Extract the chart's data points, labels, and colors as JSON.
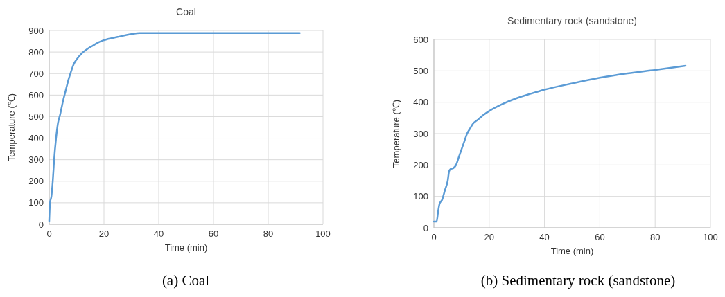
{
  "chart_data": [
    {
      "type": "line",
      "title": "Coal",
      "xlabel": "Time (min)",
      "ylabel": "Temperature (℃)",
      "annotations": [
        "(a) Coal"
      ],
      "xlim": [
        0,
        100
      ],
      "xticks": [
        0,
        20,
        40,
        60,
        80,
        100
      ],
      "ylim": [
        0,
        900
      ],
      "yticks": [
        0,
        100,
        200,
        300,
        400,
        500,
        600,
        700,
        800,
        900
      ],
      "grid": true,
      "series": [
        {
          "color": "#5b9bd5",
          "x": [
            0,
            0.3,
            0.8,
            1.3,
            1.8,
            2.5,
            3.2,
            4,
            5,
            6,
            7,
            8,
            9,
            10,
            12,
            14,
            16,
            18,
            20,
            25,
            30,
            33,
            40,
            60,
            80,
            91.5
          ],
          "values": [
            15,
            100,
            130,
            200,
            300,
            400,
            470,
            510,
            570,
            620,
            670,
            710,
            745,
            765,
            795,
            815,
            830,
            845,
            855,
            870,
            883,
            888,
            888,
            888,
            888,
            888
          ]
        }
      ]
    },
    {
      "type": "line",
      "title": "Sedimentary rock (sandstone)",
      "xlabel": "Time (min)",
      "ylabel": "Temperature (℃)",
      "annotations": [
        "(b) Sedimentary rock (sandstone)"
      ],
      "xlim": [
        0,
        100
      ],
      "xticks": [
        0,
        20,
        40,
        60,
        80,
        100
      ],
      "ylim": [
        0,
        600
      ],
      "yticks": [
        0,
        100,
        200,
        300,
        400,
        500,
        600
      ],
      "grid": true,
      "series": [
        {
          "color": "#5b9bd5",
          "x": [
            0,
            1,
            1.5,
            2,
            3,
            4,
            5,
            5.5,
            6,
            7,
            8,
            9,
            10,
            11,
            12,
            13,
            14,
            16,
            18,
            20,
            25,
            30,
            35,
            40,
            50,
            60,
            70,
            80,
            91
          ],
          "values": [
            20,
            20,
            50,
            75,
            90,
            120,
            150,
            180,
            187,
            190,
            200,
            225,
            250,
            275,
            300,
            315,
            330,
            345,
            360,
            372,
            395,
            413,
            427,
            440,
            460,
            478,
            492,
            503,
            516
          ]
        }
      ]
    }
  ]
}
